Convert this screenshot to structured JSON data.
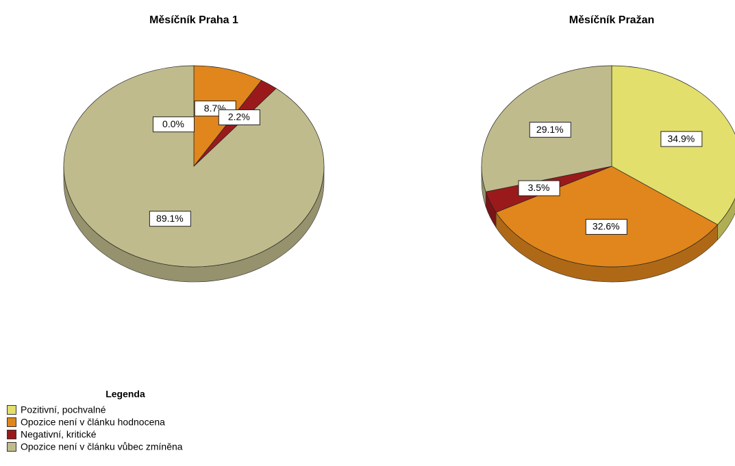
{
  "chart_data": [
    {
      "type": "pie",
      "title": "Měsíčník Praha 1",
      "values": [
        0.0,
        8.7,
        2.2,
        89.1
      ],
      "value_labels": [
        "0.0%",
        "8.7%",
        "2.2%",
        "89.1%"
      ]
    },
    {
      "type": "pie",
      "title": "Měsíčník Pražan",
      "values": [
        34.9,
        32.6,
        3.5,
        29.1
      ],
      "value_labels": [
        "34.9%",
        "32.6%",
        "3.5%",
        "29.1%"
      ]
    }
  ],
  "legend": {
    "title": "Legenda",
    "categories": [
      "Pozitivní, pochvalné",
      "Opozice není v článku hodnocena",
      "Negativní, kritické",
      "Opozice není v článku vůbec zmíněna"
    ],
    "colors": [
      "#e2df6c",
      "#e0861c",
      "#9a1a1c",
      "#bfbb8c"
    ]
  }
}
